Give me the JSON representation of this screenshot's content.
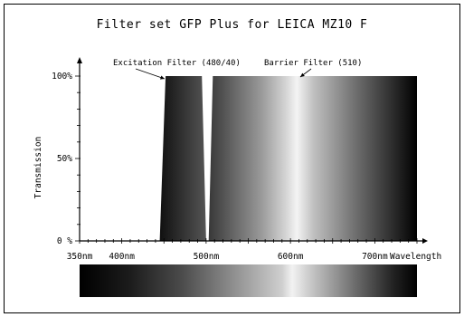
{
  "title": "Filter set GFP Plus for LEICA MZ10 F",
  "chart_data": {
    "type": "area",
    "title": "Filter set GFP Plus for LEICA MZ10 F",
    "xlabel": "Wavelength",
    "ylabel": "Transmission",
    "xlim": [
      350,
      750
    ],
    "ylim": [
      0,
      100
    ],
    "x_ticks": [
      {
        "value": 350,
        "label": "350nm"
      },
      {
        "value": 400,
        "label": "400nm"
      },
      {
        "value": 500,
        "label": "500nm"
      },
      {
        "value": 600,
        "label": "600nm"
      },
      {
        "value": 700,
        "label": "700nm"
      }
    ],
    "y_ticks": [
      {
        "value": 0,
        "label": "0 %"
      },
      {
        "value": 50,
        "label": "50%"
      },
      {
        "value": 100,
        "label": "100%"
      }
    ],
    "grid": false,
    "series": [
      {
        "name": "Excitation Filter (480/40)",
        "x": [
          445,
          452,
          495,
          500
        ],
        "y": [
          0,
          100,
          100,
          0
        ]
      },
      {
        "name": "Barrier Filter (510)",
        "x": [
          503,
          508,
          750
        ],
        "y": [
          0,
          100,
          100
        ]
      }
    ],
    "annotations": [
      {
        "text": "Excitation Filter (480/40)",
        "target": "Excitation Filter (480/40)"
      },
      {
        "text": "Barrier Filter (510)",
        "target": "Barrier Filter (510)"
      }
    ],
    "spectrum_bar": true
  }
}
